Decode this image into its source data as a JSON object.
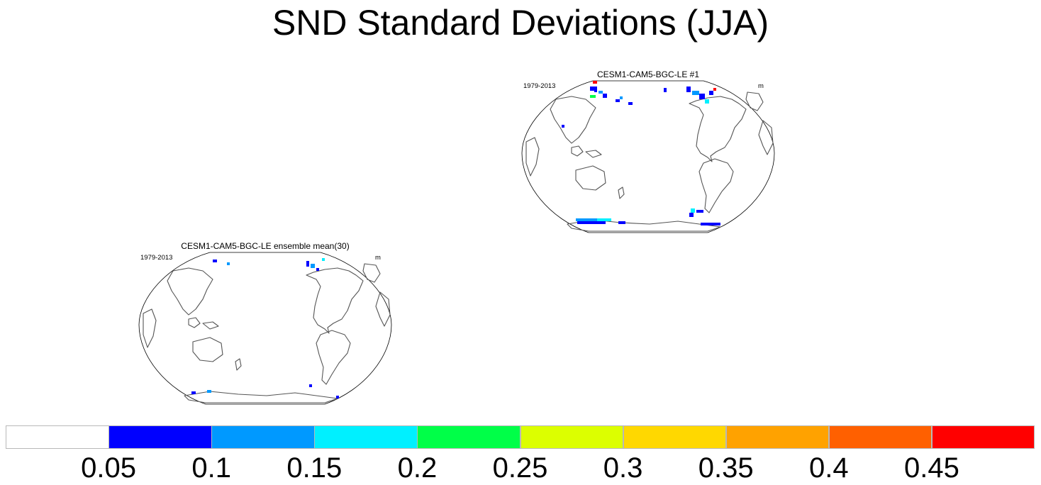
{
  "title": "SND Standard Deviations (JJA)",
  "panels": [
    {
      "id": "member1",
      "title": "CESM1-CAM5-BGC-LE #1",
      "period": "1979-2013",
      "units": "m"
    },
    {
      "id": "ensmean",
      "title": "CESM1-CAM5-BGC-LE ensemble mean(30)",
      "period": "1979-2013",
      "units": "m"
    }
  ],
  "colorbar": {
    "colors": [
      "#ffffff",
      "#0000ff",
      "#0099ff",
      "#00f0ff",
      "#00ff48",
      "#dcff00",
      "#ffd800",
      "#ffa200",
      "#ff6000",
      "#ff0000"
    ],
    "labels": [
      "0.05",
      "0.1",
      "0.15",
      "0.2",
      "0.25",
      "0.3",
      "0.35",
      "0.4",
      "0.45"
    ]
  }
}
